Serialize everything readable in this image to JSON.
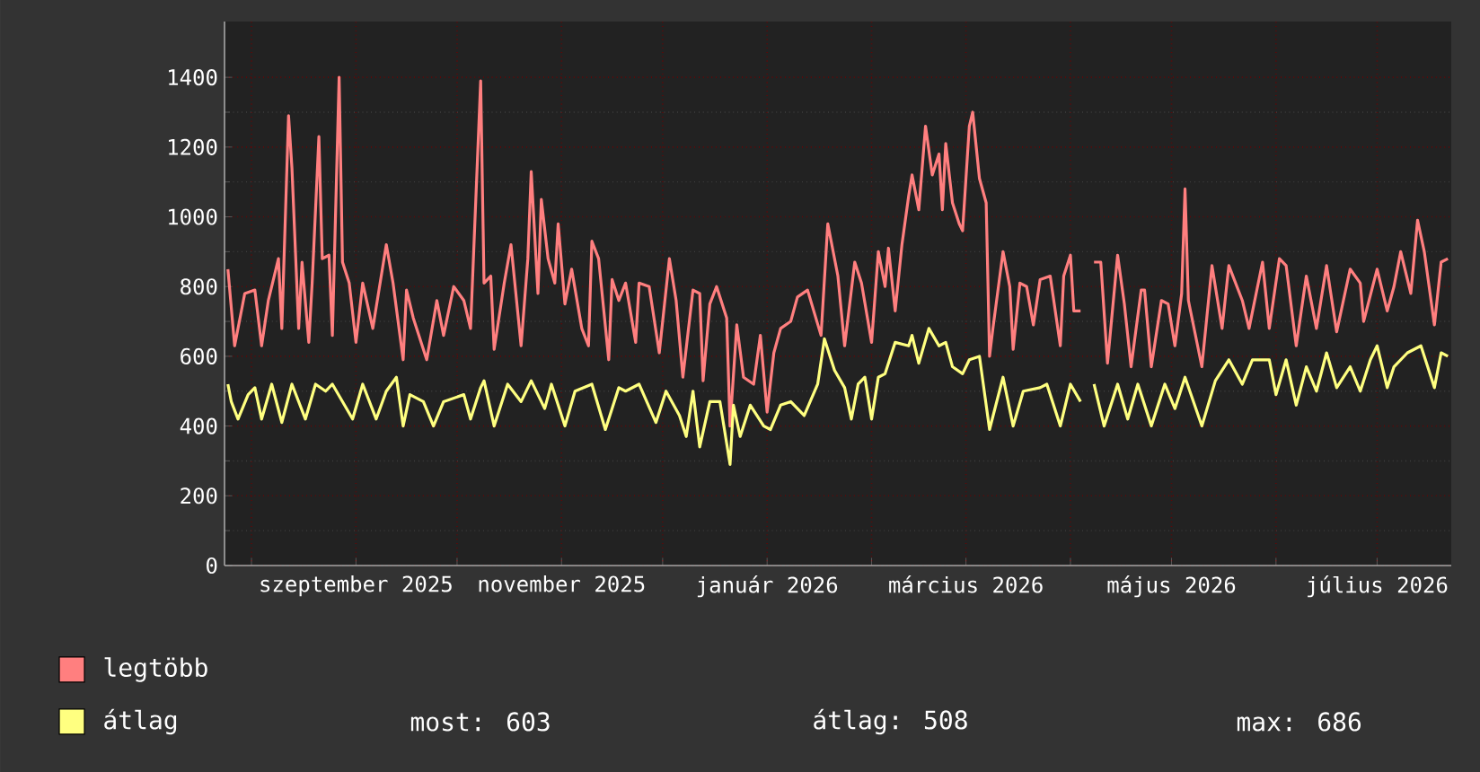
{
  "chart_data": {
    "type": "line",
    "series": [
      {
        "name": "legtöbb",
        "color": "#ff7f7f",
        "x": [
          "2025-07-25",
          "2025-07-27",
          "2025-07-30",
          "2025-08-02",
          "2025-08-04",
          "2025-08-06",
          "2025-08-09",
          "2025-08-10",
          "2025-08-12",
          "2025-08-13",
          "2025-08-15",
          "2025-08-16",
          "2025-08-18",
          "2025-08-19",
          "2025-08-21",
          "2025-08-22",
          "2025-08-24",
          "2025-08-25",
          "2025-08-27",
          "2025-08-28",
          "2025-08-30",
          "2025-09-01",
          "2025-09-03",
          "2025-09-06",
          "2025-09-10",
          "2025-09-12",
          "2025-09-15",
          "2025-09-16",
          "2025-09-18",
          "2025-09-22",
          "2025-09-25",
          "2025-09-27",
          "2025-09-30",
          "2025-10-03",
          "2025-10-05",
          "2025-10-08",
          "2025-10-09",
          "2025-10-11",
          "2025-10-12",
          "2025-10-15",
          "2025-10-17",
          "2025-10-20",
          "2025-10-22",
          "2025-10-23",
          "2025-10-25",
          "2025-10-26",
          "2025-10-28",
          "2025-10-30",
          "2025-10-31",
          "2025-11-02",
          "2025-11-04",
          "2025-11-07",
          "2025-11-09",
          "2025-11-10",
          "2025-11-12",
          "2025-11-15",
          "2025-11-16",
          "2025-11-18",
          "2025-11-20",
          "2025-11-23",
          "2025-11-24",
          "2025-11-27",
          "2025-11-30",
          "2025-12-03",
          "2025-12-05",
          "2025-12-07",
          "2025-12-10",
          "2025-12-12",
          "2025-12-13",
          "2025-12-15",
          "2025-12-17",
          "2025-12-20",
          "2025-12-21",
          "2025-12-23",
          "2025-12-25",
          "2025-12-28",
          "2025-12-30",
          "2026-01-01",
          "2026-01-03",
          "2026-01-05",
          "2026-01-08",
          "2026-01-10",
          "2026-01-13",
          "2026-01-17",
          "2026-01-19",
          "2026-01-22",
          "2026-01-24",
          "2026-01-27",
          "2026-01-29",
          "2026-02-01",
          "2026-02-03",
          "2026-02-05",
          "2026-02-06",
          "2026-02-08",
          "2026-02-10",
          "2026-02-12",
          "2026-02-13",
          "2026-02-15",
          "2026-02-17",
          "2026-02-19",
          "2026-02-21",
          "2026-02-22",
          "2026-02-23",
          "2026-02-25",
          "2026-02-27",
          "2026-02-28",
          "2026-03-02",
          "2026-03-03",
          "2026-03-05",
          "2026-03-07",
          "2026-03-08",
          "2026-03-09",
          "2026-03-12",
          "2026-03-14",
          "2026-03-15",
          "2026-03-17",
          "2026-03-19",
          "2026-03-21",
          "2026-03-23",
          "2026-03-26",
          "2026-03-29",
          "2026-03-30",
          "2026-04-01",
          "2026-04-02",
          "2026-04-04",
          "2026-04-06",
          "2026-04-08",
          "2026-04-10",
          "2026-04-12",
          "2026-04-15",
          "2026-04-17",
          "2026-04-19",
          "2026-04-22",
          "2026-04-23",
          "2026-04-25",
          "2026-04-28",
          "2026-04-30",
          "2026-05-02",
          "2026-05-04",
          "2026-05-05",
          "2026-05-06",
          "2026-05-10",
          "2026-05-13",
          "2026-05-16",
          "2026-05-18",
          "2026-05-22",
          "2026-05-24",
          "2026-05-28",
          "2026-05-30",
          "2026-06-02",
          "2026-06-04",
          "2026-06-07",
          "2026-06-10",
          "2026-06-13",
          "2026-06-16",
          "2026-06-19",
          "2026-06-23",
          "2026-06-26",
          "2026-06-27",
          "2026-07-01",
          "2026-07-04",
          "2026-07-06",
          "2026-07-08",
          "2026-07-11",
          "2026-07-13",
          "2026-07-15",
          "2026-07-18",
          "2026-07-20",
          "2026-07-22"
        ],
        "values": [
          850,
          630,
          780,
          790,
          630,
          760,
          880,
          680,
          1290,
          1140,
          680,
          870,
          640,
          810,
          1230,
          880,
          890,
          660,
          1400,
          870,
          810,
          640,
          810,
          680,
          920,
          810,
          590,
          790,
          710,
          590,
          760,
          660,
          800,
          760,
          680,
          1390,
          810,
          830,
          620,
          810,
          920,
          630,
          880,
          1130,
          780,
          1050,
          880,
          810,
          980,
          750,
          850,
          680,
          630,
          930,
          880,
          590,
          820,
          760,
          810,
          640,
          810,
          800,
          610,
          880,
          760,
          540,
          790,
          780,
          530,
          750,
          800,
          710,
          400,
          690,
          540,
          520,
          660,
          440,
          610,
          680,
          700,
          770,
          790,
          660,
          980,
          830,
          630,
          870,
          810,
          640,
          900,
          800,
          910,
          730,
          920,
          1060,
          1120,
          1020,
          1260,
          1120,
          1180,
          1020,
          1210,
          1040,
          980,
          960,
          1260,
          1300,
          1110,
          1040,
          600,
          680,
          900,
          800,
          620,
          810,
          800,
          690,
          820,
          830,
          630,
          830,
          890,
          730,
          730,
          null,
          870,
          870,
          580,
          890,
          750,
          570,
          790,
          790,
          570,
          760,
          750,
          630,
          780,
          1080,
          760,
          570,
          860,
          680,
          860,
          760,
          680,
          870,
          680,
          880,
          860,
          630,
          830,
          680,
          860,
          670,
          850,
          810,
          700,
          850,
          730,
          800,
          900,
          780,
          990,
          900,
          690,
          870,
          880
        ]
      },
      {
        "name": "átlag",
        "color": "#ffff80",
        "x": [
          "2025-07-25",
          "2025-07-26",
          "2025-07-28",
          "2025-07-31",
          "2025-08-02",
          "2025-08-04",
          "2025-08-07",
          "2025-08-10",
          "2025-08-13",
          "2025-08-17",
          "2025-08-20",
          "2025-08-23",
          "2025-08-25",
          "2025-08-31",
          "2025-09-03",
          "2025-09-07",
          "2025-09-10",
          "2025-09-13",
          "2025-09-15",
          "2025-09-17",
          "2025-09-21",
          "2025-09-24",
          "2025-09-27",
          "2025-10-03",
          "2025-10-05",
          "2025-10-08",
          "2025-10-09",
          "2025-10-12",
          "2025-10-16",
          "2025-10-20",
          "2025-10-23",
          "2025-10-27",
          "2025-10-29",
          "2025-11-02",
          "2025-11-05",
          "2025-11-10",
          "2025-11-14",
          "2025-11-18",
          "2025-11-20",
          "2025-11-24",
          "2025-11-29",
          "2025-12-02",
          "2025-12-06",
          "2025-12-08",
          "2025-12-10",
          "2025-12-12",
          "2025-12-15",
          "2025-12-18",
          "2025-12-21",
          "2025-12-22",
          "2025-12-24",
          "2025-12-27",
          "2025-12-31",
          "2026-01-02",
          "2026-01-05",
          "2026-01-08",
          "2026-01-12",
          "2026-01-16",
          "2026-01-18",
          "2026-01-21",
          "2026-01-24",
          "2026-01-26",
          "2026-01-28",
          "2026-01-30",
          "2026-02-01",
          "2026-02-03",
          "2026-02-05",
          "2026-02-08",
          "2026-02-12",
          "2026-02-13",
          "2026-02-15",
          "2026-02-18",
          "2026-02-21",
          "2026-02-23",
          "2026-02-25",
          "2026-02-28",
          "2026-03-02",
          "2026-03-05",
          "2026-03-08",
          "2026-03-12",
          "2026-03-15",
          "2026-03-18",
          "2026-03-23",
          "2026-03-25",
          "2026-03-29",
          "2026-04-01",
          "2026-04-04",
          "2026-04-06",
          "2026-04-08",
          "2026-04-11",
          "2026-04-15",
          "2026-04-18",
          "2026-04-21",
          "2026-04-25",
          "2026-04-29",
          "2026-05-02",
          "2026-05-05",
          "2026-05-10",
          "2026-05-14",
          "2026-05-18",
          "2026-05-22",
          "2026-05-25",
          "2026-05-30",
          "2026-06-01",
          "2026-06-04",
          "2026-06-07",
          "2026-06-10",
          "2026-06-13",
          "2026-06-16",
          "2026-06-19",
          "2026-06-23",
          "2026-06-26",
          "2026-06-29",
          "2026-07-01",
          "2026-07-04",
          "2026-07-06",
          "2026-07-10",
          "2026-07-14",
          "2026-07-18",
          "2026-07-20",
          "2026-07-22"
        ],
        "values": [
          520,
          470,
          420,
          490,
          510,
          420,
          520,
          410,
          520,
          420,
          520,
          500,
          520,
          420,
          520,
          420,
          500,
          540,
          400,
          490,
          470,
          400,
          470,
          490,
          420,
          510,
          530,
          400,
          520,
          470,
          530,
          450,
          520,
          400,
          500,
          520,
          390,
          510,
          500,
          520,
          410,
          500,
          430,
          370,
          500,
          340,
          470,
          470,
          290,
          460,
          370,
          460,
          400,
          390,
          460,
          470,
          430,
          520,
          650,
          560,
          510,
          420,
          520,
          540,
          420,
          540,
          550,
          640,
          630,
          660,
          580,
          680,
          630,
          640,
          570,
          550,
          590,
          600,
          390,
          540,
          400,
          500,
          510,
          520,
          400,
          520,
          470,
          null,
          520,
          400,
          520,
          420,
          520,
          400,
          520,
          450,
          540,
          400,
          530,
          590,
          520,
          590,
          590,
          490,
          590,
          460,
          570,
          500,
          610,
          510,
          570,
          500,
          590,
          630,
          510,
          570,
          610,
          630,
          510,
          610,
          600
        ]
      }
    ],
    "xlim": [
      "2025-07-24",
      "2026-07-23"
    ],
    "xticks": [
      {
        "value": "2025-08-01",
        "label": null
      },
      {
        "value": "2025-09-01",
        "label": "szeptember 2025"
      },
      {
        "value": "2025-10-01",
        "label": null
      },
      {
        "value": "2025-11-01",
        "label": "november 2025"
      },
      {
        "value": "2025-12-01",
        "label": null
      },
      {
        "value": "2026-01-01",
        "label": "január 2026"
      },
      {
        "value": "2026-02-01",
        "label": null
      },
      {
        "value": "2026-03-01",
        "label": "március 2026"
      },
      {
        "value": "2026-04-01",
        "label": null
      },
      {
        "value": "2026-05-01",
        "label": "május 2026"
      },
      {
        "value": "2026-06-01",
        "label": null
      },
      {
        "value": "2026-07-01",
        "label": "július 2026"
      }
    ],
    "ylim": [
      0,
      1560
    ],
    "yticks": [
      0,
      200,
      400,
      600,
      800,
      1000,
      1200,
      1400
    ],
    "grid": true,
    "legend": "bottom",
    "annotations": [
      "most: 603",
      "átlag: 508",
      "max: 686"
    ]
  }
}
